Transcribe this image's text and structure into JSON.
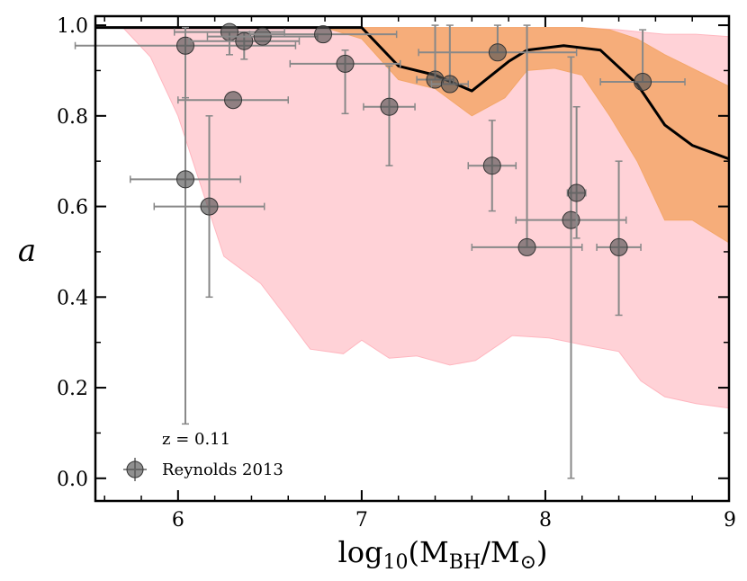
{
  "chart_data": {
    "type": "scatter",
    "xlabel_parts": {
      "prefix": "log",
      "sub": "10",
      "open": "(M",
      "bh": "BH",
      "slash": "/M",
      "sun": "⊙",
      "close": ")"
    },
    "ylabel": "a",
    "xlim": [
      5.55,
      9.0
    ],
    "ylim": [
      -0.05,
      1.02
    ],
    "x_ticks": [
      6,
      7,
      8,
      9
    ],
    "x_tick_labels": [
      "6",
      "7",
      "8",
      "9"
    ],
    "y_ticks": [
      0.0,
      0.2,
      0.4,
      0.6,
      0.8,
      1.0
    ],
    "y_tick_labels": [
      "0.0",
      "0.2",
      "0.4",
      "0.6",
      "0.8",
      "1.0"
    ],
    "annotation": "z = 0.11",
    "legend": {
      "label": "Reynolds 2013",
      "position": "lower-left"
    },
    "colors": {
      "pink_band": "#ffb6bf",
      "orange_band": "#f4a76a",
      "median_line": "#000000",
      "points": "#555555"
    },
    "median_line": {
      "x": [
        5.55,
        6.0,
        6.5,
        7.0,
        7.2,
        7.4,
        7.6,
        7.8,
        7.9,
        8.1,
        8.3,
        8.5,
        8.65,
        8.8,
        9.0
      ],
      "y": [
        0.995,
        0.995,
        0.995,
        0.995,
        0.91,
        0.89,
        0.855,
        0.92,
        0.945,
        0.955,
        0.945,
        0.87,
        0.78,
        0.735,
        0.705
      ]
    },
    "outer_band": {
      "x": [
        5.7,
        5.85,
        6.0,
        6.25,
        6.45,
        6.6,
        6.72,
        6.9,
        7.0,
        7.15,
        7.3,
        7.48,
        7.62,
        7.82,
        8.02,
        8.2,
        8.4,
        8.52,
        8.65,
        8.82,
        9.0
      ],
      "lower": [
        0.995,
        0.93,
        0.8,
        0.49,
        0.43,
        0.35,
        0.285,
        0.275,
        0.305,
        0.265,
        0.27,
        0.25,
        0.26,
        0.315,
        0.31,
        0.295,
        0.28,
        0.215,
        0.18,
        0.165,
        0.155
      ],
      "upper": [
        0.995,
        0.995,
        0.995,
        0.995,
        0.995,
        0.995,
        0.995,
        0.995,
        0.995,
        0.995,
        0.995,
        0.995,
        0.995,
        0.995,
        0.995,
        0.995,
        0.99,
        0.985,
        0.98,
        0.98,
        0.975
      ]
    },
    "inner_band": {
      "x": [
        6.2,
        6.5,
        6.8,
        7.0,
        7.2,
        7.4,
        7.6,
        7.78,
        7.9,
        8.05,
        8.2,
        8.35,
        8.5,
        8.65,
        8.8,
        9.0
      ],
      "lower": [
        0.995,
        0.995,
        0.995,
        0.97,
        0.88,
        0.86,
        0.8,
        0.84,
        0.9,
        0.905,
        0.89,
        0.8,
        0.7,
        0.57,
        0.57,
        0.52
      ],
      "upper": [
        0.995,
        0.995,
        0.995,
        0.995,
        0.995,
        0.995,
        0.995,
        0.995,
        0.995,
        0.995,
        0.995,
        0.99,
        0.97,
        0.935,
        0.905,
        0.865
      ]
    },
    "points": [
      {
        "x": 6.04,
        "y": 0.955,
        "xerr": 0.6,
        "yerr_lo": 0.12,
        "yerr_hi": 0.04
      },
      {
        "x": 6.04,
        "y": 0.66,
        "xerr": 0.3,
        "yerr_lo": 0.54,
        "yerr_hi": 0.18
      },
      {
        "x": 6.17,
        "y": 0.6,
        "xerr": 0.3,
        "yerr_lo": 0.2,
        "yerr_hi": 0.2
      },
      {
        "x": 6.28,
        "y": 0.985,
        "xerr": 0.3,
        "yerr_lo": 0.05,
        "yerr_hi": 0.0
      },
      {
        "x": 6.3,
        "y": 0.835,
        "xerr": 0.3,
        "yerr_lo": 0.0,
        "yerr_hi": 0.0
      },
      {
        "x": 6.36,
        "y": 0.965,
        "xerr": 0.3,
        "yerr_lo": 0.04,
        "yerr_hi": 0.02
      },
      {
        "x": 6.46,
        "y": 0.975,
        "xerr": 0.3,
        "yerr_lo": 0.0,
        "yerr_hi": 0.0
      },
      {
        "x": 6.79,
        "y": 0.98,
        "xerr": 0.4,
        "yerr_lo": 0.0,
        "yerr_hi": 0.0
      },
      {
        "x": 6.91,
        "y": 0.915,
        "xerr": 0.3,
        "yerr_lo": 0.11,
        "yerr_hi": 0.03
      },
      {
        "x": 7.15,
        "y": 0.82,
        "xerr": 0.14,
        "yerr_lo": 0.13,
        "yerr_hi": 0.09
      },
      {
        "x": 7.4,
        "y": 0.88,
        "xerr": 0.1,
        "yerr_lo": 0.0,
        "yerr_hi": 0.12
      },
      {
        "x": 7.48,
        "y": 0.87,
        "xerr": 0.1,
        "yerr_lo": 0.0,
        "yerr_hi": 0.13
      },
      {
        "x": 7.71,
        "y": 0.69,
        "xerr": 0.13,
        "yerr_lo": 0.1,
        "yerr_hi": 0.1
      },
      {
        "x": 7.74,
        "y": 0.94,
        "xerr": 0.43,
        "yerr_lo": 0.0,
        "yerr_hi": 0.06
      },
      {
        "x": 7.9,
        "y": 0.51,
        "xerr": 0.3,
        "yerr_lo": 0.0,
        "yerr_hi": 0.49
      },
      {
        "x": 8.14,
        "y": 0.57,
        "xerr": 0.3,
        "yerr_lo": 0.57,
        "yerr_hi": 0.36
      },
      {
        "x": 8.17,
        "y": 0.63,
        "xerr": 0.05,
        "yerr_lo": 0.1,
        "yerr_hi": 0.19
      },
      {
        "x": 8.4,
        "y": 0.51,
        "xerr": 0.12,
        "yerr_lo": 0.15,
        "yerr_hi": 0.19
      },
      {
        "x": 8.53,
        "y": 0.875,
        "xerr": 0.23,
        "yerr_lo": 0.0,
        "yerr_hi": 0.115
      }
    ]
  }
}
